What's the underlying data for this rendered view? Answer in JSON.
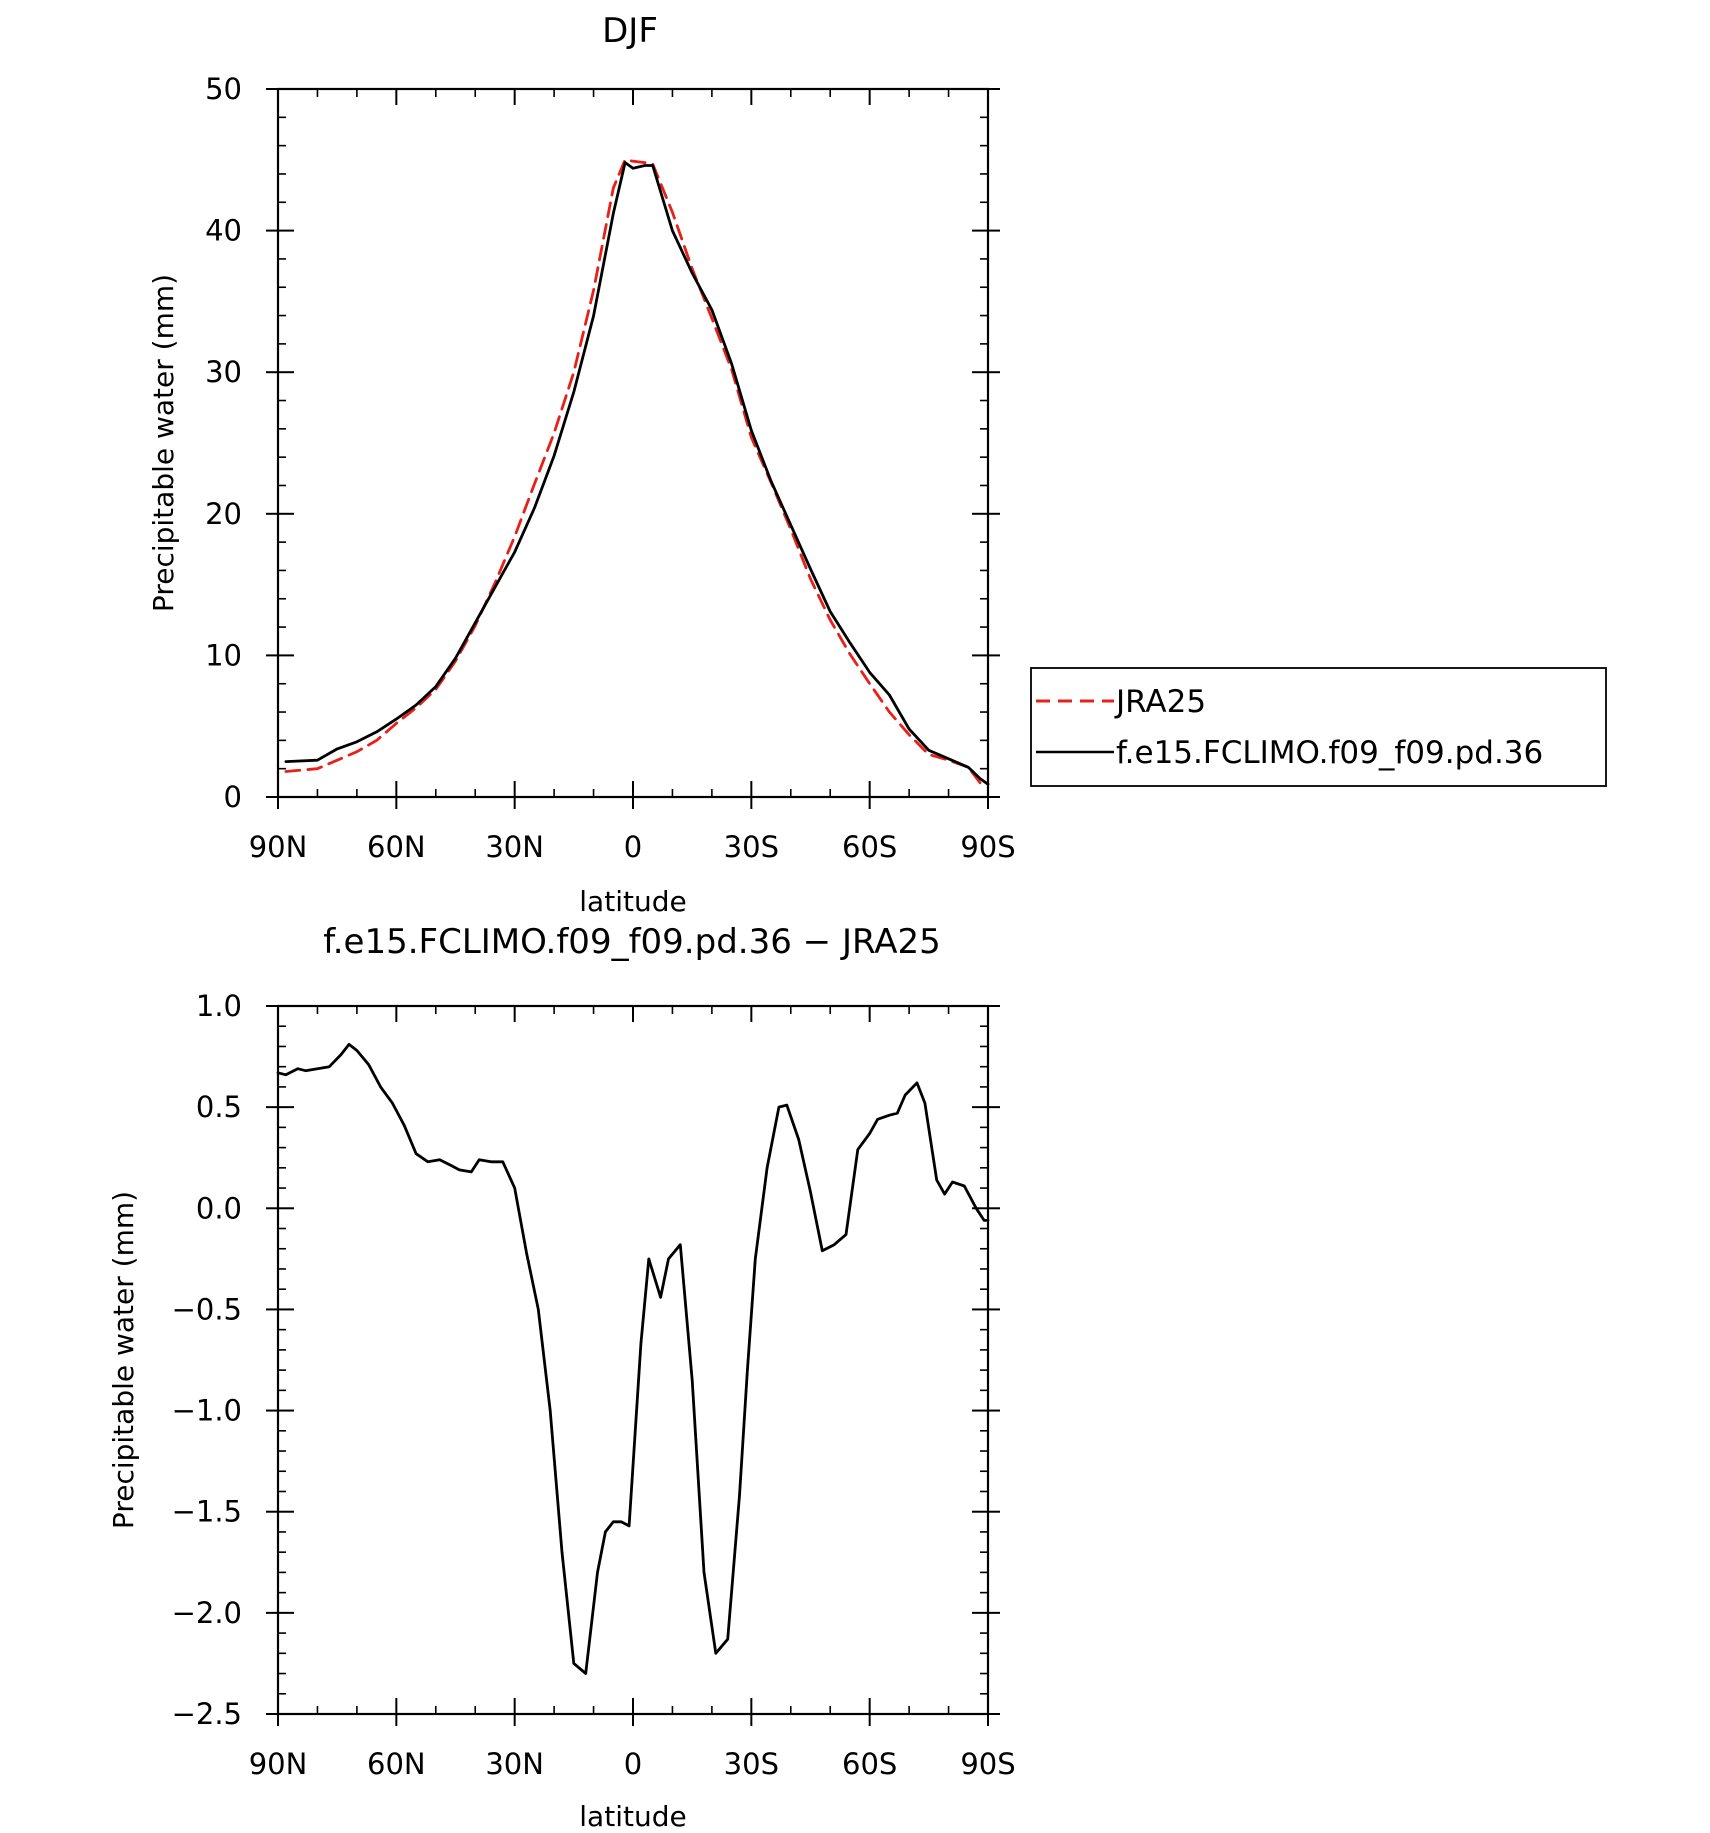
{
  "chart_data": [
    {
      "type": "line",
      "title": "DJF",
      "xlabel": "latitude",
      "ylabel": "Precipitable water (mm)",
      "xlim": [
        90,
        -90
      ],
      "ylim": [
        0,
        50
      ],
      "x_ticks": [
        90,
        60,
        30,
        0,
        -30,
        -60,
        -90
      ],
      "x_tick_labels": [
        "90N",
        "60N",
        "30N",
        "0",
        "30S",
        "60S",
        "90S"
      ],
      "y_ticks": [
        0,
        10,
        20,
        30,
        40,
        50
      ],
      "y_tick_labels": [
        "0",
        "10",
        "20",
        "30",
        "40",
        "50"
      ],
      "grid": false,
      "legend_position": "right, outside",
      "series": [
        {
          "name": "JRA25",
          "color": "#e8201a",
          "dash": "dashed",
          "x": [
            88,
            80,
            75,
            70,
            65,
            60,
            55,
            50,
            45,
            40,
            35,
            30,
            25,
            20,
            15,
            10,
            5,
            2,
            0,
            -3,
            -5,
            -10,
            -15,
            -20,
            -25,
            -30,
            -35,
            -40,
            -45,
            -50,
            -55,
            -60,
            -65,
            -70,
            -75,
            -80,
            -85,
            -88,
            -90
          ],
          "y": [
            1.8,
            2.0,
            2.6,
            3.2,
            4.0,
            5.2,
            6.3,
            7.6,
            9.6,
            12.1,
            15.1,
            18.4,
            22.1,
            25.7,
            30.0,
            35.8,
            43.0,
            45.0,
            44.9,
            44.8,
            44.7,
            41.3,
            37.3,
            33.8,
            30.2,
            25.4,
            22.2,
            18.9,
            15.4,
            12.5,
            10.1,
            8.0,
            6.0,
            4.4,
            3.0,
            2.6,
            2.1,
            1.0,
            0.9
          ]
        },
        {
          "name": "f.e15.FCLIMO.f09_f09.pd.36",
          "color": "#000000",
          "dash": "solid",
          "x": [
            88,
            80,
            75,
            70,
            65,
            60,
            55,
            50,
            45,
            40,
            35,
            30,
            25,
            20,
            15,
            10,
            5,
            2,
            0,
            -3,
            -5,
            -10,
            -15,
            -20,
            -25,
            -30,
            -35,
            -40,
            -45,
            -50,
            -55,
            -60,
            -65,
            -70,
            -75,
            -80,
            -85,
            -88,
            -90
          ],
          "y": [
            2.5,
            2.6,
            3.4,
            3.9,
            4.6,
            5.5,
            6.5,
            7.8,
            9.8,
            12.3,
            14.8,
            17.3,
            20.4,
            24.1,
            28.6,
            34.0,
            41.2,
            44.8,
            44.4,
            44.6,
            44.6,
            40.0,
            37.0,
            34.4,
            30.6,
            25.9,
            22.3,
            19.2,
            16.1,
            13.1,
            10.9,
            8.8,
            7.2,
            4.8,
            3.3,
            2.7,
            2.1,
            1.3,
            0.9
          ]
        }
      ]
    },
    {
      "type": "line",
      "title": "f.e15.FCLIMO.f09_f09.pd.36 − JRA25",
      "xlabel": "latitude",
      "ylabel": "Precipitable water (mm)",
      "xlim": [
        90,
        -90
      ],
      "ylim": [
        -2.5,
        1.0
      ],
      "x_ticks": [
        90,
        60,
        30,
        0,
        -30,
        -60,
        -90
      ],
      "x_tick_labels": [
        "90N",
        "60N",
        "30N",
        "0",
        "30S",
        "60S",
        "90S"
      ],
      "y_ticks": [
        1.0,
        0.5,
        0.0,
        -0.5,
        -1.0,
        -1.5,
        -2.0,
        -2.5
      ],
      "y_tick_labels": [
        "1.0",
        "0.5",
        "0.0",
        "−0.5",
        "−1.0",
        "−1.5",
        "−2.0",
        "−2.5"
      ],
      "grid": false,
      "series": [
        {
          "color": "#000000",
          "dash": "solid",
          "x": [
            90,
            88,
            85,
            83,
            80,
            77,
            74,
            72,
            70,
            67,
            64,
            61,
            58,
            55,
            52,
            49,
            46,
            44,
            41,
            39,
            36,
            33,
            30,
            27,
            24,
            21,
            18,
            15,
            12,
            9,
            7,
            5,
            3,
            1,
            -2,
            -4,
            -7,
            -9,
            -12,
            -15,
            -18,
            -21,
            -24,
            -27,
            -29,
            -31,
            -34,
            -37,
            -39,
            -42,
            -45,
            -48,
            -51,
            -54,
            -57,
            -60,
            -62,
            -65,
            -67,
            -69,
            -72,
            -74,
            -77,
            -79,
            -81,
            -84,
            -87,
            -89,
            -90
          ],
          "y": [
            0.67,
            0.66,
            0.69,
            0.68,
            0.69,
            0.7,
            0.76,
            0.81,
            0.78,
            0.71,
            0.6,
            0.52,
            0.41,
            0.27,
            0.23,
            0.24,
            0.21,
            0.19,
            0.18,
            0.24,
            0.23,
            0.23,
            0.1,
            -0.22,
            -0.5,
            -1.0,
            -1.7,
            -2.25,
            -2.3,
            -1.8,
            -1.6,
            -1.55,
            -1.55,
            -1.57,
            -0.67,
            -0.25,
            -0.44,
            -0.25,
            -0.18,
            -0.85,
            -1.8,
            -2.2,
            -2.13,
            -1.42,
            -0.8,
            -0.25,
            0.2,
            0.5,
            0.51,
            0.34,
            0.08,
            -0.21,
            -0.18,
            -0.13,
            0.29,
            0.37,
            0.44,
            0.46,
            0.47,
            0.56,
            0.62,
            0.52,
            0.14,
            0.07,
            0.13,
            0.11,
            0.0,
            -0.06,
            -0.06
          ]
        }
      ]
    }
  ]
}
